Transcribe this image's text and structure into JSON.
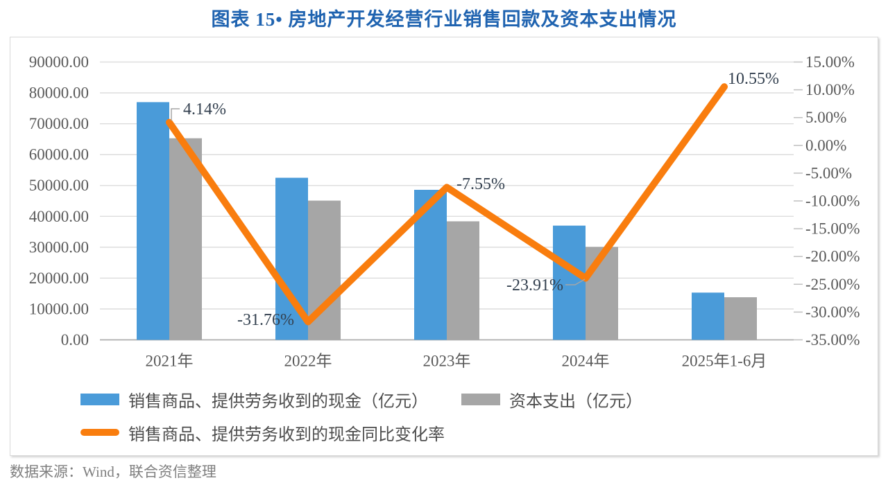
{
  "page": {
    "title": "图表 15• 房地产开发经营行业销售回款及资本支出情况",
    "source": "数据来源：Wind，联合资信整理"
  },
  "colors": {
    "title": "#1F63B0",
    "bar_blue": "#4A9BD9",
    "bar_gray": "#A6A6A6",
    "line_orange": "#F97D0E",
    "axis_text": "#595959",
    "gridline": "#D9D9D9",
    "axis_line": "#ADADAD",
    "tick_mark": "#BFBFBF",
    "data_label": "#33404F",
    "leader": "#A6A6A6",
    "source_text": "#7F7F7F"
  },
  "legend": {
    "items": [
      {
        "label": "销售商品、提供劳务收到的现金（亿元）",
        "swatch": "bar",
        "color_key": "bar_blue"
      },
      {
        "label": "资本支出（亿元）",
        "swatch": "bar",
        "color_key": "bar_gray"
      },
      {
        "label": "销售商品、提供劳务收到的现金同比变化率",
        "swatch": "line",
        "color_key": "line_orange"
      }
    ]
  },
  "chart_data": {
    "type": "combo-bar-line",
    "categories": [
      "2021年",
      "2022年",
      "2023年",
      "2024年",
      "2025年1-6月"
    ],
    "series": [
      {
        "name": "销售商品、提供劳务收到的现金（亿元）",
        "type": "bar",
        "axis": "left",
        "color_key": "bar_blue",
        "values": [
          77000,
          52500,
          48600,
          37000,
          15300
        ]
      },
      {
        "name": "资本支出（亿元）",
        "type": "bar",
        "axis": "left",
        "color_key": "bar_gray",
        "values": [
          65300,
          45100,
          38400,
          30100,
          13800
        ]
      },
      {
        "name": "销售商品、提供劳务收到的现金同比变化率",
        "type": "line",
        "axis": "right",
        "color_key": "line_orange",
        "values": [
          4.14,
          -31.76,
          -7.55,
          -23.91,
          10.55
        ],
        "point_labels": [
          "4.14%",
          "-31.76%",
          "-7.55%",
          "-23.91%",
          "10.55%"
        ]
      }
    ],
    "left_axis": {
      "min": 0,
      "max": 90000,
      "step": 10000,
      "tick_labels": [
        "90000.00",
        "80000.00",
        "70000.00",
        "60000.00",
        "50000.00",
        "40000.00",
        "30000.00",
        "20000.00",
        "10000.00",
        "0.00"
      ]
    },
    "right_axis": {
      "min": -35,
      "max": 15,
      "step": 5,
      "tick_labels": [
        "15.00%",
        "10.00%",
        "5.00%",
        "0.00%",
        "-5.00%",
        "-10.00%",
        "-15.00%",
        "-20.00%",
        "-25.00%",
        "-30.00%",
        "-35.00%"
      ]
    },
    "grid": true,
    "legend_position": "bottom"
  }
}
